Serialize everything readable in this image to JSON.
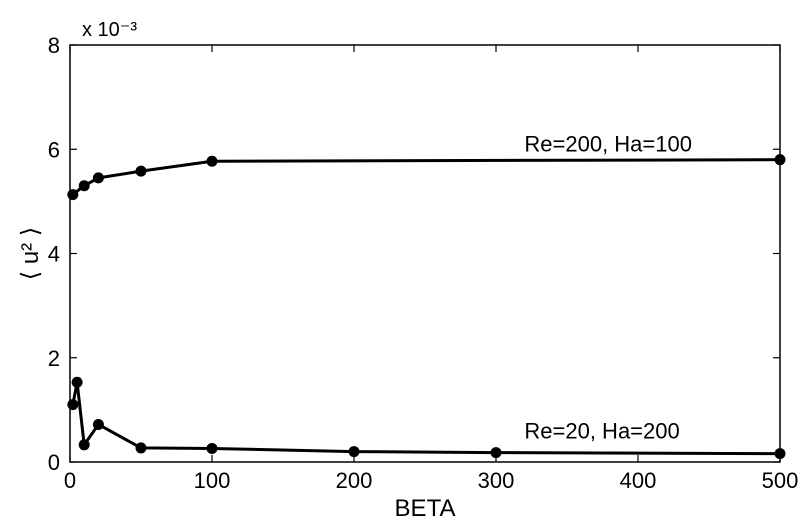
{
  "chart_data": {
    "type": "line",
    "xlabel": "BETA",
    "ylabel": "⟨ u² ⟩",
    "y_multiplier": "x 10⁻³",
    "xlim": [
      0,
      500
    ],
    "ylim": [
      0,
      8
    ],
    "x_ticks": [
      "0",
      "100",
      "200",
      "300",
      "400",
      "500"
    ],
    "y_ticks": [
      "0",
      "2",
      "4",
      "6",
      "8"
    ],
    "grid": false,
    "series": [
      {
        "name": "Re=200, Ha=100",
        "x": [
          2,
          10,
          20,
          50,
          100,
          500
        ],
        "y": [
          5.13,
          5.3,
          5.45,
          5.58,
          5.77,
          5.8
        ]
      },
      {
        "name": "Re=20, Ha=200",
        "x": [
          2,
          5,
          10,
          20,
          50,
          100,
          200,
          300,
          500
        ],
        "y": [
          1.1,
          1.53,
          0.33,
          0.72,
          0.27,
          0.26,
          0.2,
          0.18,
          0.16
        ]
      }
    ]
  }
}
